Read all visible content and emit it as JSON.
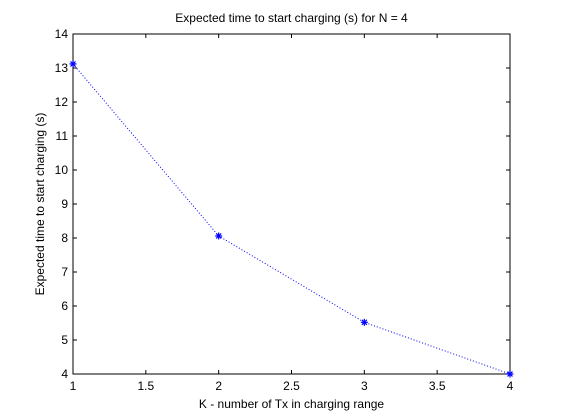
{
  "chart_data": {
    "type": "line",
    "title": "Expected time to start charging (s) for N = 4",
    "xlabel": "K - number of Tx in charging range",
    "ylabel": "Expected time to start charging (s)",
    "xlim": [
      1,
      4
    ],
    "ylim": [
      4,
      14
    ],
    "xticks": [
      "1",
      "1.5",
      "2",
      "2.5",
      "3",
      "3.5",
      "4"
    ],
    "yticks": [
      "4",
      "5",
      "6",
      "7",
      "8",
      "9",
      "10",
      "11",
      "12",
      "13",
      "14"
    ],
    "grid": false,
    "series": [
      {
        "x": [
          1,
          2,
          3,
          4
        ],
        "y": [
          13.12,
          8.06,
          5.52,
          4.0
        ],
        "color": "#0000ff",
        "line_style": "dotted",
        "marker": "asterisk"
      }
    ]
  }
}
